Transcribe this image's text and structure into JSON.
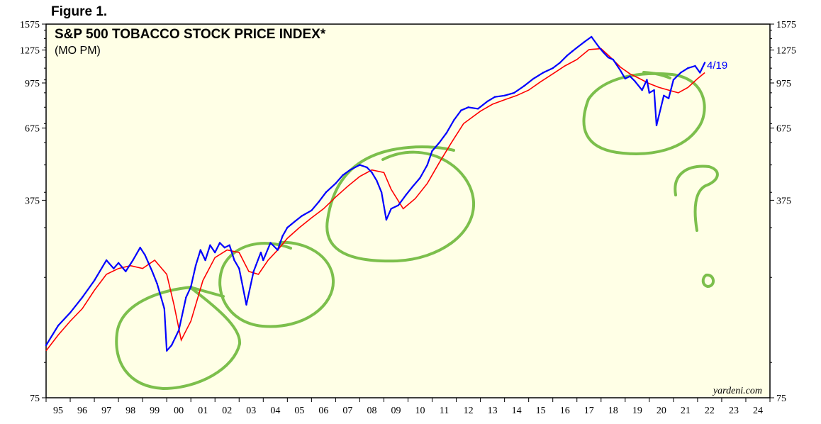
{
  "figure_label": "Figure 1.",
  "chart_data": {
    "type": "line",
    "title": "S&P 500 TOBACCO STOCK PRICE INDEX*",
    "subtitle": "(MO PM)",
    "xlabel": "",
    "ylabel": "",
    "yscale": "log",
    "ylim": [
      75,
      1575
    ],
    "xlim": [
      1995,
      2025
    ],
    "y_ticks": [
      75,
      375,
      675,
      975,
      1275,
      1575
    ],
    "x_ticks": [
      "95",
      "96",
      "97",
      "98",
      "99",
      "00",
      "01",
      "02",
      "03",
      "04",
      "05",
      "06",
      "07",
      "08",
      "09",
      "10",
      "11",
      "12",
      "13",
      "14",
      "15",
      "16",
      "17",
      "18",
      "19",
      "20",
      "21",
      "22",
      "23",
      "24"
    ],
    "end_label": "4/19",
    "source": "yardeni.com",
    "grid": false,
    "colors": {
      "background": "#ffffe6",
      "price_line": "#0000ff",
      "moving_average": "#ff0000",
      "annotations": "#7cbf4c"
    },
    "series": [
      {
        "key": "price",
        "x": [
          1995.0,
          1995.5,
          1996.0,
          1996.5,
          1997.0,
          1997.5,
          1997.8,
          1998.0,
          1998.3,
          1998.6,
          1998.9,
          1999.1,
          1999.4,
          1999.6,
          1999.9,
          2000.0,
          2000.2,
          2000.5,
          2000.8,
          2001.0,
          2001.2,
          2001.4,
          2001.6,
          2001.8,
          2002.0,
          2002.2,
          2002.4,
          2002.6,
          2002.8,
          2003.0,
          2003.1,
          2003.3,
          2003.6,
          2003.9,
          2004.0,
          2004.3,
          2004.6,
          2004.8,
          2005.0,
          2005.3,
          2005.6,
          2006.0,
          2006.3,
          2006.6,
          2007.0,
          2007.3,
          2007.6,
          2008.0,
          2008.3,
          2008.5,
          2008.7,
          2008.9,
          2009.1,
          2009.3,
          2009.6,
          2009.9,
          2010.2,
          2010.5,
          2010.8,
          2011.0,
          2011.3,
          2011.6,
          2011.9,
          2012.2,
          2012.5,
          2012.9,
          2013.3,
          2013.6,
          2014.0,
          2014.4,
          2014.8,
          2015.2,
          2015.6,
          2016.0,
          2016.3,
          2016.6,
          2016.8,
          2017.0,
          2017.3,
          2017.6,
          2017.9,
          2018.1,
          2018.3,
          2018.5,
          2018.8,
          2019.0,
          2019.2,
          2019.4,
          2019.7,
          2019.9,
          2020.0,
          2020.2,
          2020.3,
          2020.6,
          2020.8,
          2021.0,
          2021.3,
          2021.6,
          2021.9,
          2022.1,
          2022.3
        ],
        "y": [
          115,
          135,
          150,
          170,
          195,
          230,
          215,
          225,
          210,
          230,
          255,
          240,
          210,
          190,
          155,
          110,
          115,
          130,
          170,
          185,
          220,
          250,
          230,
          260,
          245,
          265,
          255,
          260,
          230,
          215,
          195,
          160,
          210,
          245,
          230,
          265,
          250,
          280,
          300,
          315,
          330,
          345,
          370,
          400,
          430,
          460,
          480,
          500,
          490,
          470,
          440,
          400,
          320,
          350,
          360,
          390,
          420,
          450,
          500,
          560,
          600,
          650,
          720,
          780,
          800,
          790,
          840,
          870,
          880,
          900,
          950,
          1010,
          1060,
          1100,
          1150,
          1220,
          1260,
          1300,
          1360,
          1420,
          1310,
          1250,
          1200,
          1180,
          1080,
          1010,
          1030,
          990,
          920,
          1000,
          900,
          920,
          690,
          880,
          860,
          1000,
          1060,
          1100,
          1120,
          1060,
          1150
        ]
      },
      {
        "key": "moving_average",
        "x": [
          1995.0,
          1995.5,
          1996.0,
          1996.5,
          1997.0,
          1997.5,
          1998.0,
          1998.5,
          1999.0,
          1999.5,
          2000.0,
          2000.3,
          2000.6,
          2001.0,
          2001.5,
          2002.0,
          2002.5,
          2003.0,
          2003.4,
          2003.8,
          2004.2,
          2004.6,
          2005.0,
          2005.5,
          2006.0,
          2006.5,
          2007.0,
          2007.5,
          2008.0,
          2008.5,
          2009.0,
          2009.3,
          2009.8,
          2010.3,
          2010.8,
          2011.3,
          2011.8,
          2012.3,
          2013.0,
          2013.5,
          2014.0,
          2014.5,
          2015.0,
          2015.5,
          2016.0,
          2016.5,
          2017.0,
          2017.5,
          2018.0,
          2018.4,
          2018.8,
          2019.2,
          2019.6,
          2020.0,
          2020.4,
          2020.8,
          2021.2,
          2021.6,
          2022.0,
          2022.3
        ],
        "y": [
          110,
          125,
          140,
          155,
          180,
          205,
          215,
          220,
          215,
          230,
          205,
          160,
          120,
          140,
          195,
          235,
          250,
          245,
          210,
          205,
          230,
          250,
          275,
          300,
          325,
          350,
          385,
          420,
          455,
          480,
          470,
          410,
          350,
          380,
          430,
          510,
          600,
          700,
          775,
          820,
          850,
          880,
          920,
          985,
          1050,
          1120,
          1180,
          1280,
          1290,
          1200,
          1110,
          1050,
          1010,
          970,
          940,
          920,
          900,
          940,
          1010,
          1060
        ]
      }
    ]
  }
}
